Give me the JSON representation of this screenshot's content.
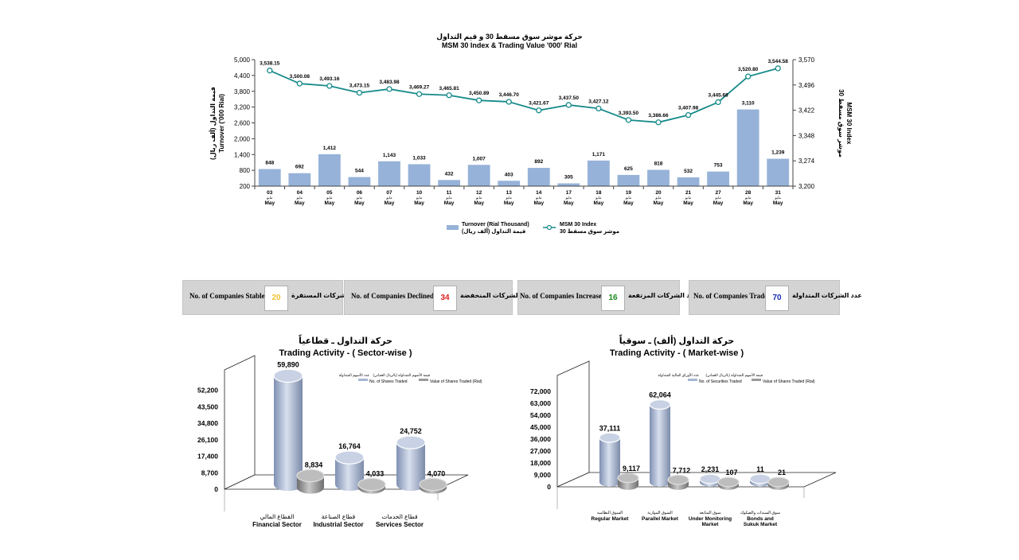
{
  "top_chart": {
    "title_ar": "حركة موشر سوق مسقط 30 و قيم التداول",
    "title_en": "MSM 30 Index & Trading Value '000' Rial",
    "ylabel_left_ar": "قيمة التداول (ألف ريال)",
    "ylabel_left_en": "Turnover ('000 Rial)",
    "ylabel_right_ar": "موشر سوق مسقط 30",
    "ylabel_right_en": "MSM 30 Index",
    "legend_bar_en": "Turnover (Rial Thousand)",
    "legend_bar_ar": "قيمة التداول (ألف ريال)",
    "legend_line_en": "MSM 30 Index",
    "legend_line_ar": "موشر سوق مسقط 30",
    "month_ar": "مايو",
    "month_en": "May"
  },
  "chart_data": [
    {
      "type": "bar",
      "categories": [
        "03",
        "04",
        "05",
        "06",
        "07",
        "10",
        "11",
        "12",
        "13",
        "14",
        "17",
        "18",
        "19",
        "20",
        "21",
        "27",
        "28",
        "31"
      ],
      "series": [
        {
          "name": "Turnover (Rial Thousand)",
          "axis": "left",
          "type": "bar",
          "values": [
            848,
            692,
            1412,
            544,
            1143,
            1033,
            432,
            1007,
            403,
            892,
            305,
            1171,
            625,
            818,
            532,
            753,
            3110,
            1239
          ],
          "labels": [
            "848",
            "692",
            "1,412",
            "544",
            "1,143",
            "1,033",
            "432",
            "1,007",
            "403",
            "892",
            "305",
            "1,171",
            "625",
            "818",
            "532",
            "753",
            "3,110",
            "1,239"
          ]
        },
        {
          "name": "MSM 30 Index",
          "axis": "right",
          "type": "line",
          "values": [
            3538.15,
            3500.08,
            3493.16,
            3473.15,
            3483.98,
            3469.27,
            3465.81,
            3450.89,
            3446.7,
            3421.67,
            3437.5,
            3427.12,
            3393.5,
            3386.66,
            3407.98,
            3445.68,
            3520.8,
            3544.58
          ],
          "labels": [
            "3,538.15",
            "3,500.08",
            "3,493.16",
            "3,473.15",
            "3,483.98",
            "3,469.27",
            "3,465.81",
            "3,450.89",
            "3,446.70",
            "3,421.67",
            "3,437.50",
            "3,427.12",
            "3,393.50",
            "3,386.66",
            "3,407.98",
            "3,445.68",
            "3,520.80",
            "3,544.58"
          ]
        }
      ],
      "ylim_left": [
        200,
        5000
      ],
      "yticks_left": [
        "5,000",
        "4,400",
        "3,800",
        "3,200",
        "2,600",
        "2,000",
        "1,400",
        "800",
        "200"
      ],
      "ylim_right": [
        3200,
        3570
      ],
      "yticks_right": [
        "3,570",
        "3,496",
        "3,422",
        "3,348",
        "3,274",
        "3,200"
      ],
      "legend": "bottom"
    },
    {
      "type": "bar",
      "title_ar": "حركة التداول ـ قطاعياً",
      "title_en": "Trading Activity  - ( Sector-wise )",
      "categories": [
        {
          "ar": "القطاع المالي",
          "en": "Financial Sector"
        },
        {
          "ar": "قطاع الصناعة",
          "en": "Industrial Sector"
        },
        {
          "ar": "قطاع الخدمات",
          "en": "Services Sector"
        }
      ],
      "series": [
        {
          "name_ar": "عدد الأسهم المتداولة",
          "name": "No. of Shares Traded",
          "values": [
            59890,
            16764,
            24752
          ],
          "labels": [
            "59,890",
            "16,764",
            "24,752"
          ]
        },
        {
          "name_ar": "قيمة الأسهم المتداولة (بالريال العماني)",
          "name": "Value of Shares Traded (Rial)",
          "values": [
            8834,
            4033,
            4070
          ],
          "labels": [
            "8,834",
            "4,033",
            "4,070"
          ]
        }
      ],
      "ylim": [
        0,
        60900
      ],
      "yticks": [
        "52,200",
        "43,500",
        "34,800",
        "26,100",
        "17,400",
        "8,700",
        "0"
      ],
      "legend": "top-right"
    },
    {
      "type": "bar",
      "title_ar": "حركة التداول (ألف) ـ سوقياً",
      "title_en": "Trading Activity - ( Market-wise )",
      "categories": [
        {
          "ar": "السوق النظامية",
          "en": "Regular Market"
        },
        {
          "ar": "السوق الموازية",
          "en": "Parallel Market"
        },
        {
          "ar": "سوق المتابعة",
          "en": "Under Monitoring Market"
        },
        {
          "ar": "سوق السندات والصكوك",
          "en": "Bonds and Sukuk Market"
        }
      ],
      "series": [
        {
          "name_ar": "عدد الأوراق المالية المتداولة",
          "name": "No. of Securities Traded",
          "values": [
            37111,
            62064,
            2231,
            11
          ],
          "labels": [
            "37,111",
            "62,064",
            "2,231",
            "11"
          ]
        },
        {
          "name_ar": "قيمة الأسهم المتداولة (بالريال العماني)",
          "name": "Value of Shares Traded (Rial)",
          "values": [
            9117,
            7712,
            107,
            21
          ],
          "labels": [
            "9,117",
            "7,712",
            "107",
            "21"
          ]
        }
      ],
      "ylim": [
        0,
        72000
      ],
      "yticks": [
        "72,000",
        "63,000",
        "54,000",
        "45,000",
        "36,000",
        "27,000",
        "18,000",
        "9,000",
        "0"
      ],
      "legend": "top-right"
    }
  ],
  "stats": [
    {
      "en": "No. of Companies Stable",
      "value": "20",
      "ar": "عدد الشركات المستقرة",
      "color": "#f2c12e"
    },
    {
      "en": "No. of Companies Declined",
      "value": "34",
      "ar": "عدد الشركات المنخفضة",
      "color": "#e02020"
    },
    {
      "en": "No. of Companies Increased",
      "value": "16",
      "ar": "عدد الشركات المرتفعة",
      "color": "#1a8a1a"
    },
    {
      "en": "No. of Companies Traded",
      "value": "70",
      "ar": "عدد الشركات المتداولة",
      "color": "#1a2db0"
    }
  ],
  "colors": {
    "bar": "#96b2d8",
    "line": "#178a8a",
    "cyl_blue": "#a6b6d2",
    "cyl_grey": "#9a9a9a"
  }
}
